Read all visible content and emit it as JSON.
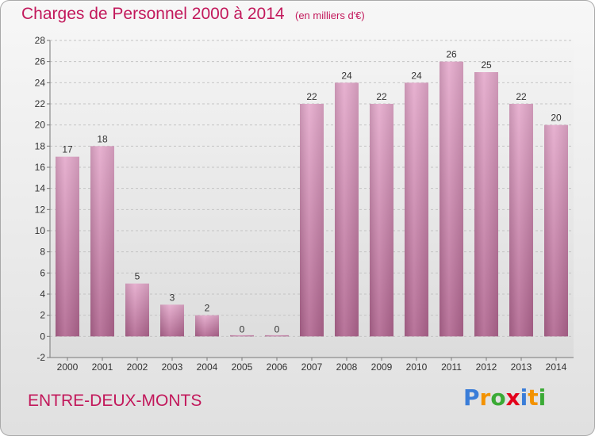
{
  "header": {
    "title": "Charges de Personnel 2000 à 2014",
    "subtitle": "(en milliers d'€)"
  },
  "footer": {
    "commune": "ENTRE-DEUX-MONTS",
    "logo_letters": [
      "P",
      "r",
      "o",
      "x",
      "i",
      "t",
      "i"
    ],
    "logo_colors": [
      "#3a7dd8",
      "#f39200",
      "#3aaa35",
      "#e3001b",
      "#3a7dd8",
      "#f39200",
      "#3aaa35"
    ]
  },
  "colors": {
    "bar": "#d693b8",
    "title": "#c2185b"
  },
  "chart_data": {
    "type": "bar",
    "title": "Charges de Personnel 2000 à 2014",
    "subtitle": "(en milliers d'€)",
    "xlabel": "",
    "ylabel": "",
    "categories": [
      "2000",
      "2001",
      "2002",
      "2003",
      "2004",
      "2005",
      "2006",
      "2007",
      "2008",
      "2009",
      "2010",
      "2011",
      "2012",
      "2013",
      "2014"
    ],
    "values": [
      17,
      18,
      5,
      3,
      2,
      0,
      0,
      22,
      24,
      22,
      24,
      26,
      25,
      22,
      20
    ],
    "data_labels": [
      "17",
      "18",
      "5",
      "3",
      "2",
      "0",
      "0",
      "22",
      "24",
      "22",
      "24",
      "26",
      "25",
      "22",
      "20"
    ],
    "yticks": [
      "-2",
      "0",
      "2",
      "4",
      "6",
      "8",
      "10",
      "12",
      "14",
      "16",
      "18",
      "20",
      "22",
      "24",
      "26",
      "28"
    ],
    "ylim": [
      -2,
      28
    ],
    "grid": true
  }
}
